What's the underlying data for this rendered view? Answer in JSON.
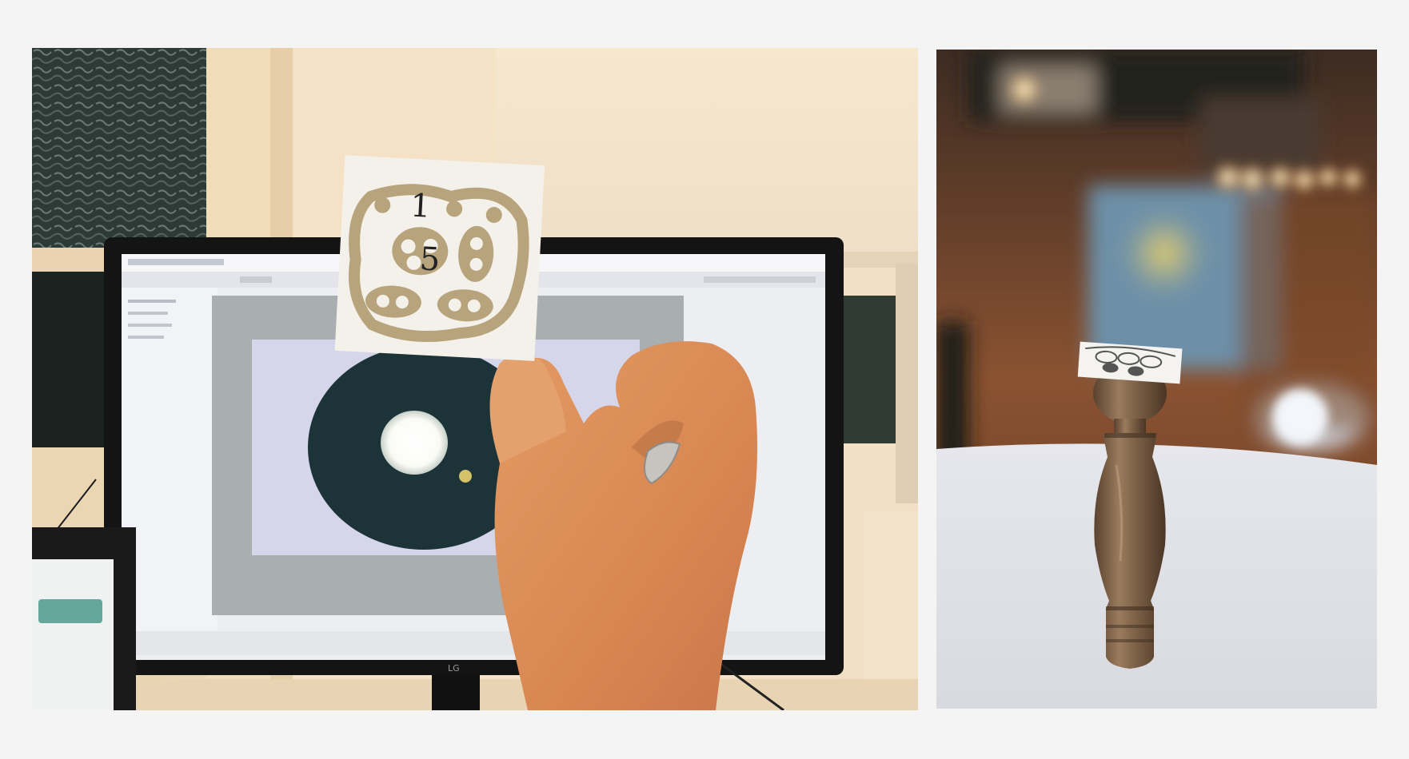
{
  "images": [
    {
      "id": "left-photo",
      "alt": "",
      "monitor_brand": "LG",
      "card_handwriting": [
        "1",
        "5"
      ]
    },
    {
      "id": "right-photo",
      "alt": ""
    }
  ],
  "colors": {
    "page_background": "#f4f4f4",
    "wall": "#f0dcc0",
    "monitor_bezel": "#141414",
    "screen_frame": "#f3f4f8",
    "screen_inner": "#a9aeb0",
    "screen_light": "#d8d8ea",
    "disc": "#1c3338",
    "glow": "#ffffff",
    "skin": "#d98c5a",
    "card": "#f4f0ea",
    "card_ink": "#b7a47c",
    "pepper_mill": "#7a5f45",
    "table": "#dee0e6"
  }
}
